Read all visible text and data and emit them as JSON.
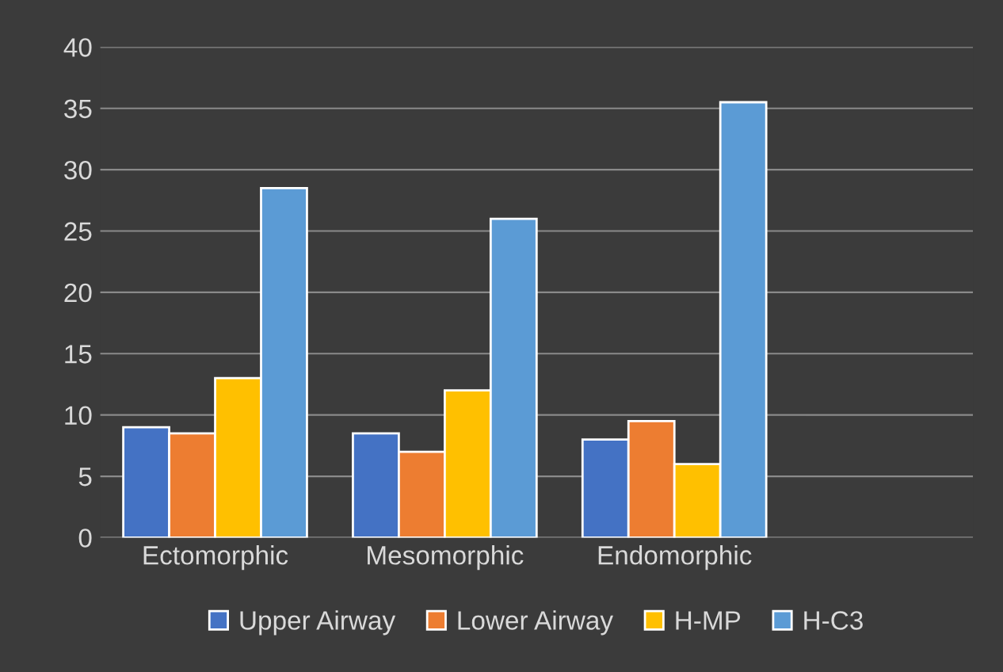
{
  "chart_data": {
    "type": "bar",
    "categories": [
      "Ectomorphic",
      "Mesomorphic",
      "Endomorphic"
    ],
    "series": [
      {
        "name": "Upper Airway",
        "color": "#4472c4",
        "values": [
          9,
          8.5,
          8
        ]
      },
      {
        "name": "Lower Airway",
        "color": "#ed7d31",
        "values": [
          8.5,
          7,
          9.5
        ]
      },
      {
        "name": "H-MP",
        "color": "#ffc000",
        "values": [
          13,
          12,
          6
        ]
      },
      {
        "name": "H-C3",
        "color": "#5b9bd5",
        "values": [
          28.5,
          26,
          35.5
        ]
      }
    ],
    "ylim": [
      0,
      40
    ],
    "yticks": [
      0,
      5,
      10,
      15,
      20,
      25,
      30,
      35,
      40
    ],
    "grid": "y",
    "legend": "bottom"
  }
}
